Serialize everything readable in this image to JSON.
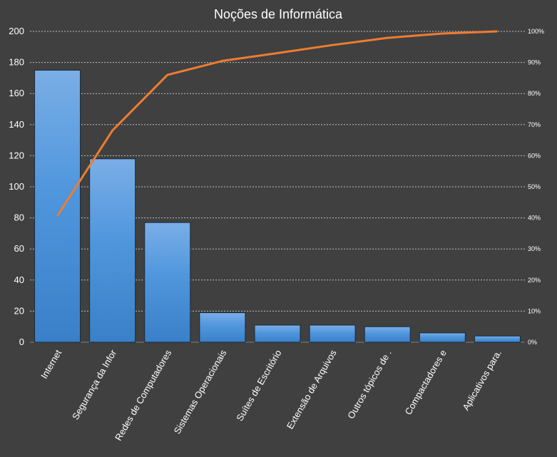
{
  "chart_data": {
    "type": "bar",
    "title": "Noções de Informática",
    "categories": [
      "Internet",
      "Segurança da Infor",
      "Redes de Computadores",
      "Sistemas Operacionais",
      "Suítes de Escritório",
      "Extensão de Arquivos",
      "Outros tópicos de .",
      "Compactadores e",
      "Aplicativos para."
    ],
    "series": [
      {
        "type": "bar",
        "values": [
          175,
          118,
          77,
          19,
          11,
          11,
          10,
          6,
          4
        ]
      },
      {
        "type": "line",
        "axis": "right",
        "values": [
          40.7,
          68.1,
          86.0,
          90.5,
          93.0,
          95.6,
          97.9,
          99.3,
          100
        ]
      }
    ],
    "ylim": [
      0,
      200
    ],
    "yticks": [
      0,
      20,
      40,
      60,
      80,
      100,
      120,
      140,
      160,
      180,
      200
    ],
    "y2lim": [
      0,
      100
    ],
    "y2ticks": [
      "0%",
      "10%",
      "20%",
      "30%",
      "40%",
      "50%",
      "60%",
      "70%",
      "80%",
      "90%",
      "100%"
    ],
    "grid": true,
    "colors": {
      "bar": "#4a90d9",
      "bar_border": "#1a2a3a",
      "line": "#ed7d31",
      "grid": "#bfbfbf",
      "background": "#404040"
    }
  }
}
